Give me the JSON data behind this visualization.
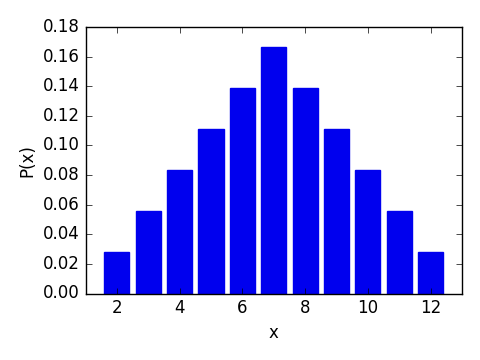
{
  "x_values": [
    2,
    3,
    4,
    5,
    6,
    7,
    8,
    9,
    10,
    11,
    12
  ],
  "probabilities": [
    0.02778,
    0.05556,
    0.08333,
    0.11111,
    0.13889,
    0.16667,
    0.13889,
    0.11111,
    0.08333,
    0.05556,
    0.02778
  ],
  "bar_color": "#0000EE",
  "bar_width": 0.8,
  "xlabel": "x",
  "ylabel": "P(x)",
  "xlim": [
    1.0,
    13.0
  ],
  "ylim": [
    0.0,
    0.18
  ],
  "xticks": [
    2,
    4,
    6,
    8,
    10,
    12
  ],
  "yticks": [
    0.0,
    0.02,
    0.04,
    0.06,
    0.08,
    0.1,
    0.12,
    0.14,
    0.16,
    0.18
  ],
  "background_color": "#ffffff",
  "figsize": [
    4.8,
    3.6
  ],
  "dpi": 100
}
